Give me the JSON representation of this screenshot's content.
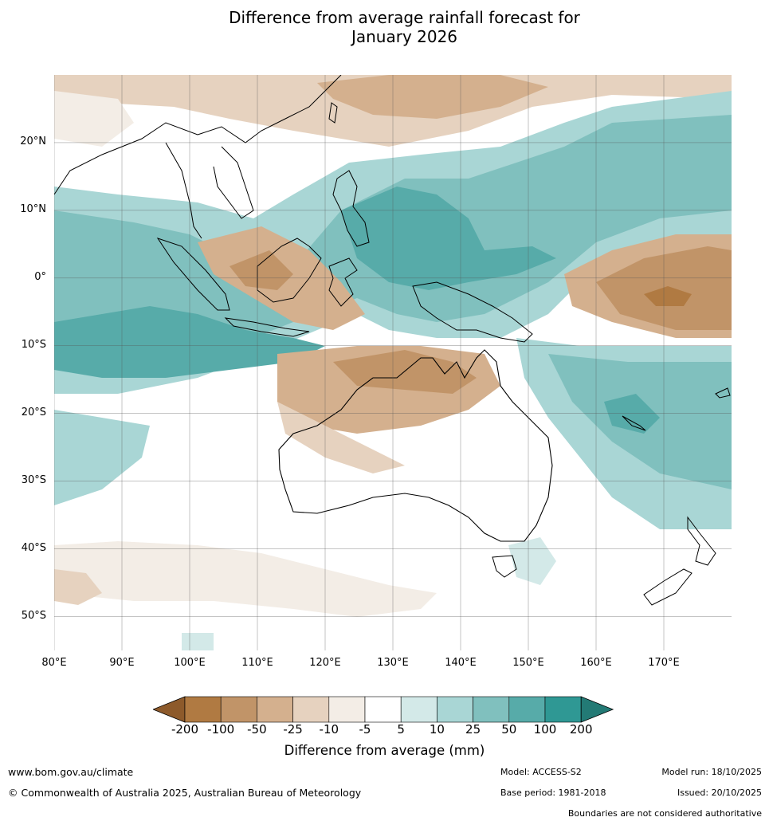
{
  "title_line1": "Difference from average rainfall forecast for",
  "title_line2": "January 2026",
  "map": {
    "lat_labels": [
      "20°N",
      "10°N",
      "0°",
      "10°S",
      "20°S",
      "30°S",
      "40°S",
      "50°S"
    ],
    "lon_labels": [
      "80°E",
      "90°E",
      "100°E",
      "110°E",
      "120°E",
      "130°E",
      "140°E",
      "150°E",
      "160°E",
      "170°E"
    ],
    "lat_values": [
      20,
      10,
      0,
      -10,
      -20,
      -30,
      -40,
      -50
    ],
    "lon_values": [
      80,
      90,
      100,
      110,
      120,
      130,
      140,
      150,
      160,
      170
    ],
    "lon_range": [
      80,
      180
    ],
    "lat_range": [
      30,
      -55
    ]
  },
  "colorbar": {
    "title": "Difference from average (mm)",
    "ticks": [
      "-200",
      "-100",
      "-50",
      "-25",
      "-10",
      "-5",
      "5",
      "10",
      "25",
      "50",
      "100",
      "200"
    ],
    "colors": [
      "#a06a34",
      "#b07a42",
      "#c19468",
      "#d4b08e",
      "#e6d2bf",
      "#f3ede6",
      "#ffffff",
      "#d3e9e8",
      "#a9d6d5",
      "#80c0be",
      "#57aba9",
      "#2f9894",
      "#237a75"
    ]
  },
  "footer": {
    "url": "www.bom.gov.au/climate",
    "copyright": "© Commonwealth of Australia 2025, Australian Bureau of Meteorology",
    "model": "Model: ACCESS-S2",
    "base_period": "Base period: 1981-2018",
    "model_run": "Model run: 18/10/2025",
    "issued": "Issued: 20/10/2025",
    "disclaimer": "Boundaries are not considered authoritative"
  }
}
